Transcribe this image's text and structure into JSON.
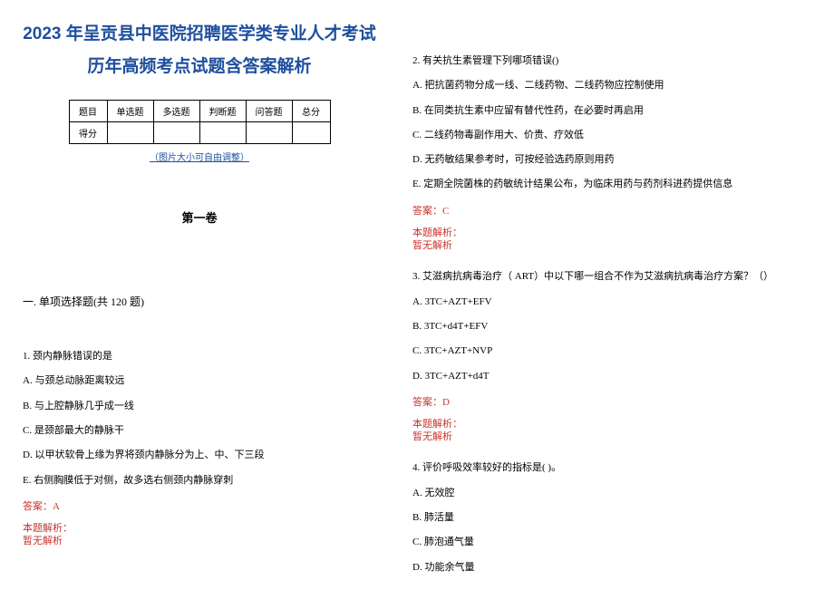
{
  "title_line1": "2023 年呈贡县中医院招聘医学类专业人才考试",
  "title_line2": "历年高频考点试题含答案解析",
  "table": {
    "headers": [
      "题目",
      "单选题",
      "多选题",
      "判断题",
      "问答题",
      "总分"
    ],
    "row_label": "得分"
  },
  "note": "（图片大小可自由调整）",
  "volume": "第一卷",
  "section": "一. 单项选择题(共 120 题)",
  "q1": {
    "stem": "1. 颈内静脉错误的是",
    "a": "A. 与颈总动脉距离较远",
    "b": "B. 与上腔静脉几乎成一线",
    "c": "C. 是颈部最大的静脉干",
    "d": "D. 以甲状软骨上缘为界将颈内静脉分为上、中、下三段",
    "e": "E. 右侧胸膜低于对侧，故多选右侧颈内静脉穿刺",
    "answer": "答案：A",
    "analysis_label": "本题解析：",
    "analysis": "暂无解析"
  },
  "q2": {
    "stem": "2. 有关抗生素管理下列哪项错误()",
    "a": "A. 把抗菌药物分成一线、二线药物、二线药物应控制使用",
    "b": "B. 在同类抗生素中应留有替代性药，在必要时再启用",
    "c": "C. 二线药物毒副作用大、价贵、疗效低",
    "d": "D. 无药敏结果参考时，可按经验选药原则用药",
    "e": "E. 定期全院菌株的药敏统计结果公布，为临床用药与药剂科进药提供信息",
    "answer": "答案：C",
    "analysis_label": "本题解析：",
    "analysis": "暂无解析"
  },
  "q3": {
    "stem": "3. 艾滋病抗病毒治疗（ ART）中以下哪一组合不作为艾滋病抗病毒治疗方案？（）",
    "a": "A. 3TC+AZT+EFV",
    "b": "B. 3TC+d4T+EFV",
    "c": "C. 3TC+AZT+NVP",
    "d": "D. 3TC+AZT+d4T",
    "answer": "答案：D",
    "analysis_label": "本题解析：",
    "analysis": "暂无解析"
  },
  "q4": {
    "stem": "4. 评价呼吸效率较好的指标是( )。",
    "a": "A. 无效腔",
    "b": "B. 肺活量",
    "c": "C. 肺泡通气量",
    "d": "D. 功能余气量"
  },
  "colors": {
    "title": "#1e4f9e",
    "answer": "#c8352e",
    "text": "#000000",
    "background": "#ffffff"
  }
}
